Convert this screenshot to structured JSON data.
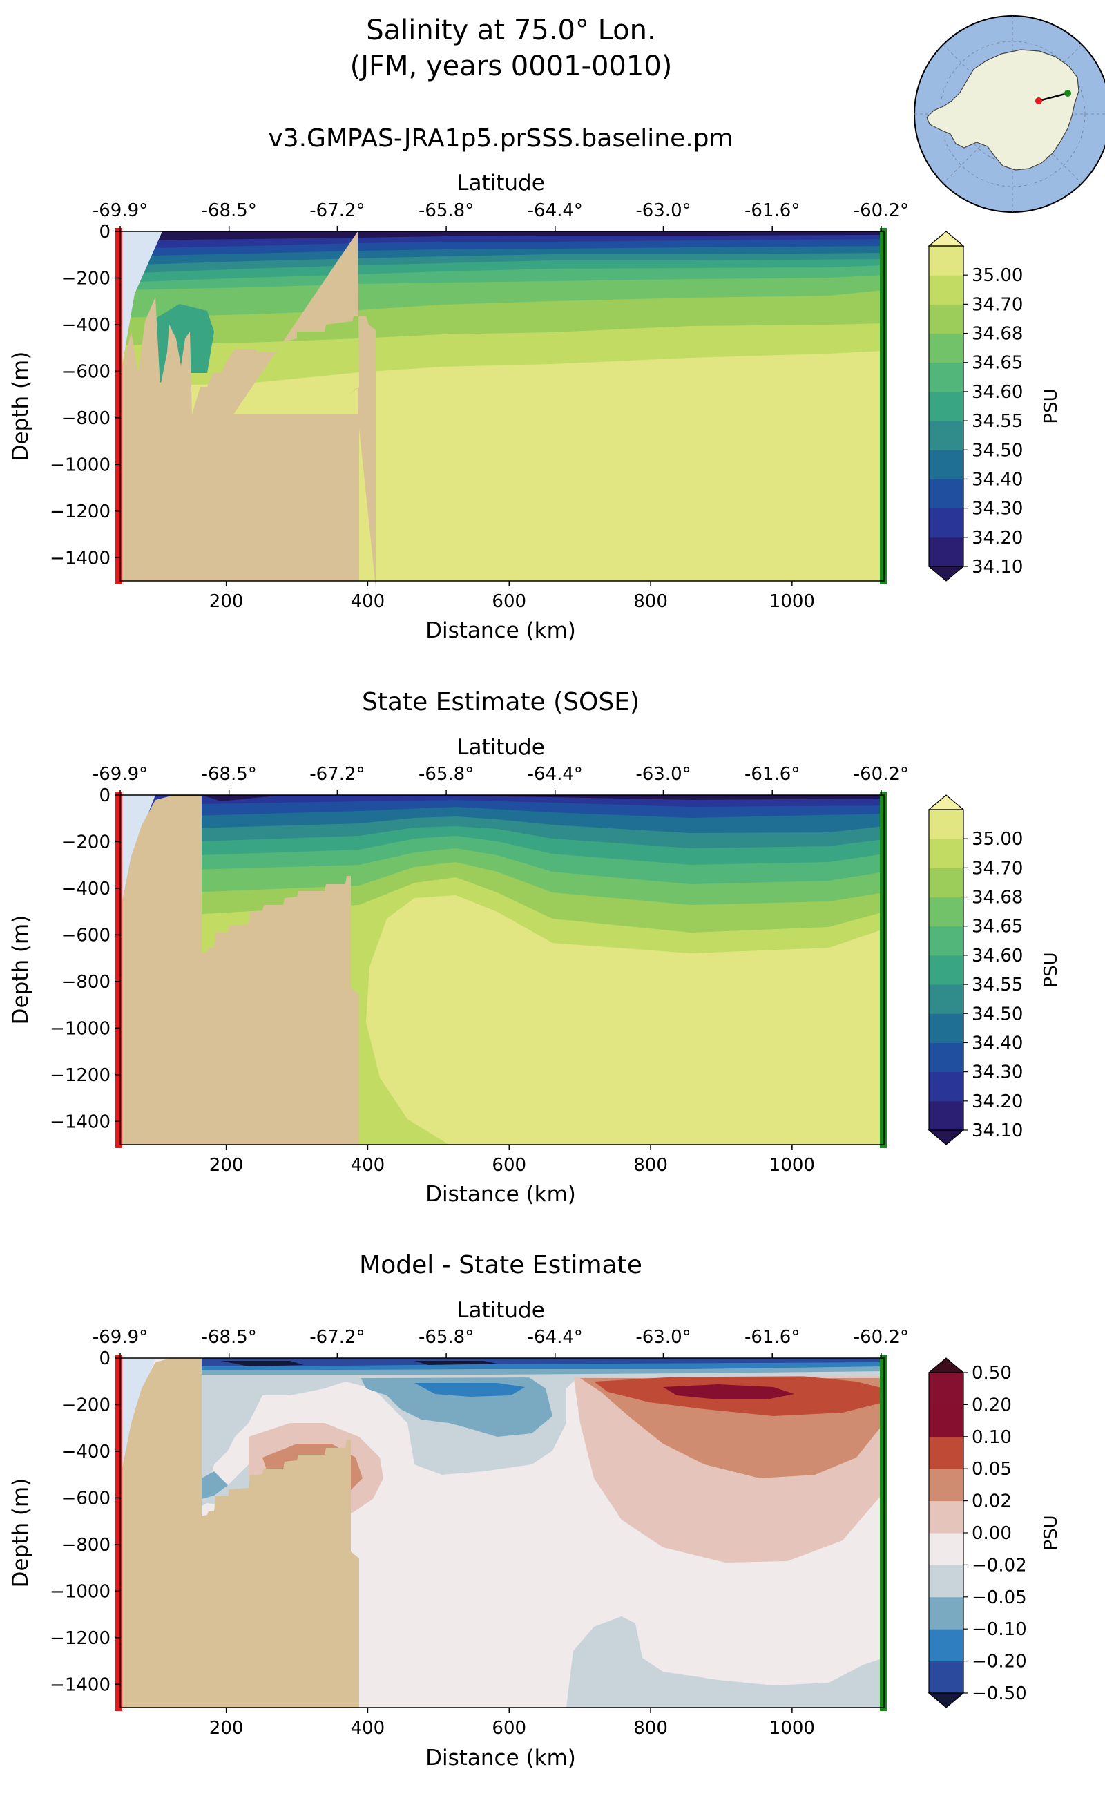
{
  "figure": {
    "title_line1": "Salinity at 75.0° Lon.",
    "title_line2": "(JFM, years 0001-0010)"
  },
  "chart_data": [
    {
      "type": "heatmap",
      "title": "v3.GMPAS-JRA1p5.prSSS.baseline.pm",
      "xlabel": "Distance (km)",
      "ylabel": "Depth (m)",
      "top_axis_label": "Latitude",
      "x_ticks": [
        200,
        400,
        600,
        800,
        1000
      ],
      "x_tick_labels": [
        "200",
        "400",
        "600",
        "800",
        "1000"
      ],
      "y_ticks": [
        0,
        -200,
        -400,
        -600,
        -800,
        -1000,
        -1200,
        -1400
      ],
      "y_tick_labels": [
        "0",
        "−200",
        "−400",
        "−600",
        "−800",
        "−1000",
        "−1200",
        "−1400"
      ],
      "lat_tick_labels": [
        "-69.9°",
        "-68.5°",
        "-67.2°",
        "-65.8°",
        "-64.4°",
        "-63.0°",
        "-61.6°",
        "-60.2°"
      ],
      "lat_tick_km": [
        50,
        204,
        357,
        511,
        665,
        818,
        972,
        1126
      ],
      "xlim": [
        50,
        1130
      ],
      "ylim": [
        -1500,
        0
      ],
      "colorbar": {
        "label": "PSU",
        "levels": [
          34.1,
          34.2,
          34.3,
          34.4,
          34.5,
          34.55,
          34.6,
          34.65,
          34.68,
          34.7,
          35.0
        ],
        "tick_labels": [
          "34.10",
          "34.20",
          "34.30",
          "34.40",
          "34.50",
          "34.55",
          "34.60",
          "34.65",
          "34.68",
          "34.70",
          "35.00"
        ],
        "colors": [
          "#2b1f73",
          "#2a3598",
          "#1f4f9e",
          "#1f6e94",
          "#2f8c8a",
          "#3aa583",
          "#52b57a",
          "#72c26a",
          "#9ccc5a",
          "#c2dc63",
          "#e2e682"
        ],
        "under_color": "#231552",
        "over_color": "#f5f1a4"
      },
      "contour_layers": [
        {
          "level": "34.70-35.00",
          "color": "#e2e682"
        },
        {
          "level": "34.68-34.70",
          "color": "#c2dc63"
        },
        {
          "level": "34.65-34.68",
          "color": "#9ccc5a"
        },
        {
          "level": "34.60-34.65",
          "color": "#72c26a"
        },
        {
          "level": "34.55-34.60",
          "color": "#52b57a"
        },
        {
          "level": "34.50-34.55",
          "color": "#3aa583"
        },
        {
          "level": "34.40-34.50",
          "color": "#2f8c8a"
        },
        {
          "level": "34.30-34.40",
          "color": "#1f6e94"
        },
        {
          "level": "34.20-34.30",
          "color": "#1f4f9e"
        },
        {
          "level": "34.10-34.20",
          "color": "#2a3598"
        },
        {
          "level": "<34.10",
          "color": "#231552"
        }
      ]
    },
    {
      "type": "heatmap",
      "title": "State Estimate (SOSE)",
      "xlabel": "Distance (km)",
      "ylabel": "Depth (m)",
      "top_axis_label": "Latitude",
      "x_ticks": [
        200,
        400,
        600,
        800,
        1000
      ],
      "x_tick_labels": [
        "200",
        "400",
        "600",
        "800",
        "1000"
      ],
      "y_ticks": [
        0,
        -200,
        -400,
        -600,
        -800,
        -1000,
        -1200,
        -1400
      ],
      "y_tick_labels": [
        "0",
        "−200",
        "−400",
        "−600",
        "−800",
        "−1000",
        "−1200",
        "−1400"
      ],
      "lat_tick_labels": [
        "-69.9°",
        "-68.5°",
        "-67.2°",
        "-65.8°",
        "-64.4°",
        "-63.0°",
        "-61.6°",
        "-60.2°"
      ],
      "lat_tick_km": [
        50,
        204,
        357,
        511,
        665,
        818,
        972,
        1126
      ],
      "xlim": [
        50,
        1130
      ],
      "ylim": [
        -1500,
        0
      ],
      "colorbar": {
        "label": "PSU",
        "levels": [
          34.1,
          34.2,
          34.3,
          34.4,
          34.5,
          34.55,
          34.6,
          34.65,
          34.68,
          34.7,
          35.0
        ],
        "tick_labels": [
          "34.10",
          "34.20",
          "34.30",
          "34.40",
          "34.50",
          "34.55",
          "34.60",
          "34.65",
          "34.68",
          "34.70",
          "35.00"
        ],
        "colors": [
          "#2b1f73",
          "#2a3598",
          "#1f4f9e",
          "#1f6e94",
          "#2f8c8a",
          "#3aa583",
          "#52b57a",
          "#72c26a",
          "#9ccc5a",
          "#c2dc63",
          "#e2e682"
        ],
        "under_color": "#231552",
        "over_color": "#f5f1a4"
      },
      "contour_layers": [
        {
          "level": "34.70-35.00",
          "color": "#e2e682"
        },
        {
          "level": "34.68-34.70",
          "color": "#c2dc63"
        },
        {
          "level": "34.65-34.68",
          "color": "#9ccc5a"
        },
        {
          "level": "34.60-34.65",
          "color": "#72c26a"
        },
        {
          "level": "34.55-34.60",
          "color": "#52b57a"
        },
        {
          "level": "34.50-34.55",
          "color": "#3aa583"
        },
        {
          "level": "34.40-34.50",
          "color": "#2f8c8a"
        },
        {
          "level": "34.30-34.40",
          "color": "#1f6e94"
        },
        {
          "level": "34.20-34.30",
          "color": "#1f4f9e"
        },
        {
          "level": "34.10-34.20",
          "color": "#2a3598"
        },
        {
          "level": "<34.10",
          "color": "#231552"
        }
      ]
    },
    {
      "type": "heatmap",
      "title": "Model - State Estimate",
      "xlabel": "Distance (km)",
      "ylabel": "Depth (m)",
      "top_axis_label": "Latitude",
      "x_ticks": [
        200,
        400,
        600,
        800,
        1000
      ],
      "x_tick_labels": [
        "200",
        "400",
        "600",
        "800",
        "1000"
      ],
      "y_ticks": [
        0,
        -200,
        -400,
        -600,
        -800,
        -1000,
        -1200,
        -1400
      ],
      "y_tick_labels": [
        "0",
        "−200",
        "−400",
        "−600",
        "−800",
        "−1000",
        "−1200",
        "−1400"
      ],
      "lat_tick_labels": [
        "-69.9°",
        "-68.5°",
        "-67.2°",
        "-65.8°",
        "-64.4°",
        "-63.0°",
        "-61.6°",
        "-60.2°"
      ],
      "lat_tick_km": [
        50,
        204,
        357,
        511,
        665,
        818,
        972,
        1126
      ],
      "xlim": [
        50,
        1130
      ],
      "ylim": [
        -1500,
        0
      ],
      "colorbar": {
        "label": "PSU",
        "levels": [
          -0.5,
          -0.2,
          -0.1,
          -0.05,
          -0.02,
          0.0,
          0.02,
          0.05,
          0.1,
          0.2,
          0.5
        ],
        "tick_labels": [
          "−0.50",
          "−0.20",
          "−0.10",
          "−0.05",
          "−0.02",
          "0.00",
          "0.02",
          "0.05",
          "0.10",
          "0.20",
          "0.50"
        ],
        "colors": [
          "#2b4a9e",
          "#2f7fbf",
          "#7aaac1",
          "#c8d3da",
          "#f0eaea",
          "#e5c4bb",
          "#d08c71",
          "#bf4a35",
          "#860f2f",
          "#86102f"
        ],
        "under_color": "#14193a",
        "over_color": "#3d0d1b"
      },
      "contour_layers": [
        {
          "level": "-0.02-0.00",
          "color": "#f0eaea"
        },
        {
          "level": "-0.05--0.02",
          "color": "#c8d3da"
        },
        {
          "level": "-0.10--0.05",
          "color": "#7aaac1"
        },
        {
          "level": "-0.20--0.10",
          "color": "#2f7fbf"
        },
        {
          "level": "0.02-0.05",
          "color": "#e5c4bb"
        },
        {
          "level": "0.05-0.10",
          "color": "#d08c71"
        },
        {
          "level": "0.10-0.20",
          "color": "#bf4a35"
        },
        {
          "level": "0.20-0.50",
          "color": "#860f2f"
        }
      ]
    }
  ],
  "inset_map": {
    "description": "Antarctica polar map with transect",
    "ocean_color": "#9cbbe3",
    "land_color": "#eef0dc",
    "start_marker_color": "#e41a1c",
    "end_marker_color": "#1a8a1a"
  },
  "style": {
    "land_color": "#d8c097",
    "ice_shelf_color": "#d8e4f2",
    "start_bar_color": "#e41a1c",
    "end_bar_color": "#1a8a1a"
  }
}
